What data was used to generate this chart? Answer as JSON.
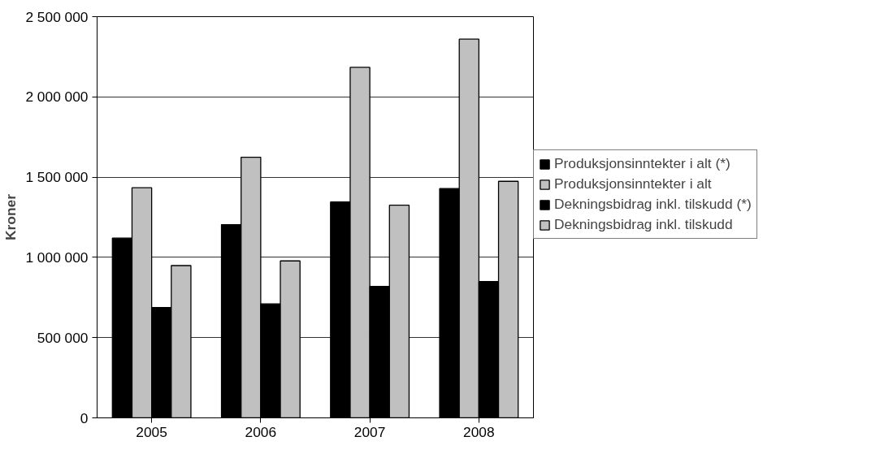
{
  "chart_data": {
    "type": "bar",
    "ylabel": "Kroner",
    "categories": [
      "2005",
      "2006",
      "2007",
      "2008"
    ],
    "series": [
      {
        "name": "Produksjonsinntekter i alt (*)",
        "color": "#000000",
        "values": [
          1120000,
          1204000,
          1345000,
          1429000
        ]
      },
      {
        "name": "Produksjonsinntekter i alt",
        "color": "#c0c0c0",
        "values": [
          1434000,
          1624000,
          2184000,
          2360000
        ]
      },
      {
        "name": "Dekningsbidrag inkl. tilskudd (*)",
        "color": "#000000",
        "values": [
          688000,
          710000,
          819000,
          849000
        ]
      },
      {
        "name": "Dekningsbidrag inkl. tilskudd",
        "color": "#c0c0c0",
        "values": [
          949000,
          978000,
          1325000,
          1474000
        ]
      }
    ],
    "ylim": [
      0,
      2500000
    ],
    "yticks": [
      {
        "value": 0,
        "label": "0"
      },
      {
        "value": 500000,
        "label": "500 000"
      },
      {
        "value": 1000000,
        "label": "1 000 000"
      },
      {
        "value": 1500000,
        "label": "1 500 000"
      },
      {
        "value": 2000000,
        "label": "2 000 000"
      },
      {
        "value": 2500000,
        "label": "2 500 000"
      }
    ],
    "grid": "y",
    "legend": "right"
  }
}
